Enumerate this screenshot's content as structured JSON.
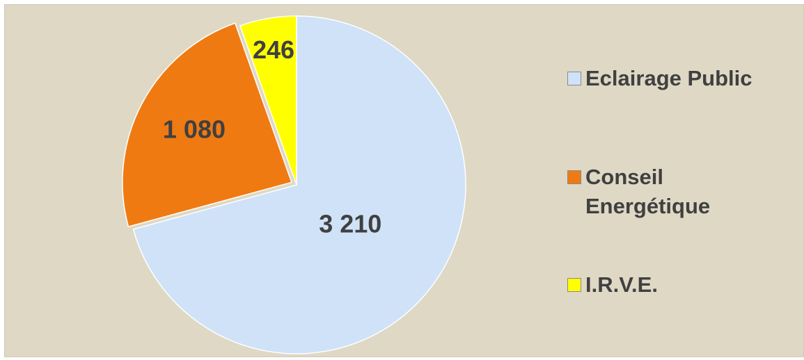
{
  "chart_data": {
    "type": "pie",
    "categories": [
      "Eclairage Public",
      "Conseil Energétique",
      "I.R.V.E."
    ],
    "values": [
      3210,
      1080,
      246
    ],
    "value_labels": [
      "3 210",
      "1 080",
      "246"
    ],
    "colors": [
      "#cfe2f8",
      "#f07a12",
      "#ffff00"
    ]
  }
}
